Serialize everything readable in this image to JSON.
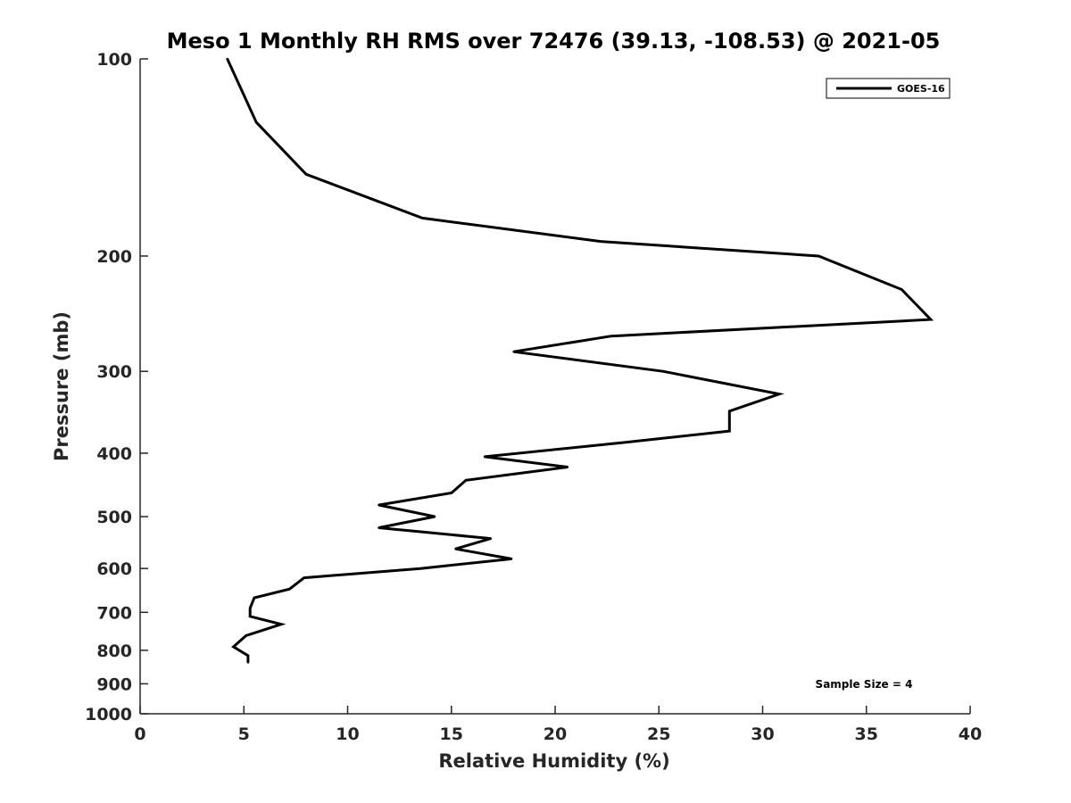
{
  "chart_data": {
    "type": "line",
    "title": "Meso 1 Monthly RH RMS over 72476 (39.13, -108.53) @ 2021-05",
    "xlabel": "Relative Humidity (%)",
    "ylabel": "Pressure (mb)",
    "xlim": [
      0,
      40
    ],
    "ylim": [
      100,
      1000
    ],
    "y_scale": "log",
    "y_reversed": true,
    "x_ticks": [
      "0",
      "5",
      "10",
      "15",
      "20",
      "25",
      "30",
      "35",
      "40"
    ],
    "y_ticks": [
      "100",
      "200",
      "300",
      "400",
      "500",
      "600",
      "700",
      "800",
      "900",
      "1000"
    ],
    "grid": false,
    "legend_position": "top-right",
    "annotation": "Sample Size = 4",
    "series": [
      {
        "name": "GOES-16",
        "color": "#000000",
        "points": [
          [
            4.2,
            100
          ],
          [
            5.6,
            125
          ],
          [
            8.0,
            150
          ],
          [
            13.6,
            175
          ],
          [
            22.2,
            190
          ],
          [
            32.7,
            200
          ],
          [
            36.7,
            225
          ],
          [
            38.1,
            250
          ],
          [
            22.7,
            265
          ],
          [
            18.0,
            280
          ],
          [
            25.2,
            300
          ],
          [
            30.8,
            325
          ],
          [
            28.4,
            345
          ],
          [
            28.4,
            370
          ],
          [
            23.4,
            385
          ],
          [
            16.6,
            405
          ],
          [
            20.6,
            420
          ],
          [
            15.7,
            440
          ],
          [
            15.0,
            460
          ],
          [
            11.5,
            480
          ],
          [
            14.2,
            500
          ],
          [
            11.5,
            520
          ],
          [
            16.9,
            540
          ],
          [
            15.2,
            560
          ],
          [
            17.9,
            580
          ],
          [
            13.5,
            600
          ],
          [
            7.9,
            620
          ],
          [
            7.2,
            645
          ],
          [
            5.5,
            665
          ],
          [
            5.3,
            690
          ],
          [
            5.3,
            710
          ],
          [
            6.8,
            730
          ],
          [
            5.1,
            760
          ],
          [
            4.5,
            790
          ],
          [
            5.2,
            815
          ],
          [
            5.2,
            835
          ]
        ]
      }
    ]
  }
}
